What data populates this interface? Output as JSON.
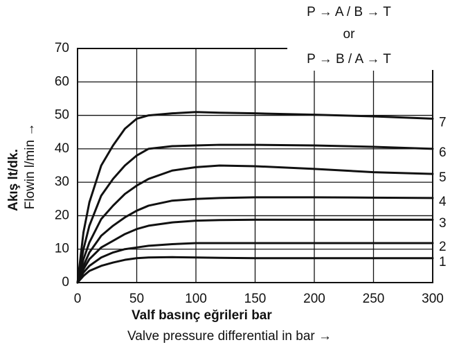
{
  "chart_data": {
    "type": "line",
    "annotations": [
      "P → A / B → T",
      "or",
      "P → B / A → T"
    ],
    "xlabel": "Valf basınç eğrileri bar",
    "xlabel2": "Valve pressure differential in bar →",
    "ylabel": "Akış lt/dk.",
    "ylabel2": "Flowin l/min →",
    "x": [
      0,
      5,
      10,
      20,
      30,
      40,
      50,
      60,
      80,
      100,
      120,
      150,
      200,
      250,
      300
    ],
    "series": [
      {
        "name": "1",
        "color": "#111111",
        "values": [
          0,
          2,
          3.5,
          5,
          6,
          6.8,
          7.3,
          7.5,
          7.6,
          7.5,
          7.4,
          7.3,
          7.3,
          7.3,
          7.3
        ]
      },
      {
        "name": "2",
        "color": "#111111",
        "values": [
          0,
          3,
          5,
          7.5,
          9,
          10,
          10.5,
          11,
          11.5,
          11.8,
          11.8,
          11.8,
          11.8,
          11.8,
          11.8
        ]
      },
      {
        "name": "3",
        "color": "#111111",
        "values": [
          0,
          4,
          7,
          10.5,
          12.5,
          14.5,
          16,
          17,
          18,
          18.5,
          18.7,
          18.8,
          18.8,
          18.8,
          18.8
        ]
      },
      {
        "name": "4",
        "color": "#111111",
        "values": [
          0,
          5,
          9,
          14,
          17,
          19.5,
          21.5,
          23,
          24.5,
          25,
          25.3,
          25.5,
          25.5,
          25.4,
          25.3
        ]
      },
      {
        "name": "5",
        "color": "#111111",
        "values": [
          0,
          7,
          12,
          19,
          23,
          26.5,
          29,
          31,
          33.5,
          34.5,
          35,
          34.8,
          34,
          33,
          32.5
        ]
      },
      {
        "name": "6",
        "color": "#111111",
        "values": [
          0,
          10,
          17,
          26,
          31,
          35,
          38,
          40,
          40.8,
          41,
          41.2,
          41.2,
          41,
          40.6,
          40
        ]
      },
      {
        "name": "7",
        "color": "#111111",
        "values": [
          0,
          15,
          24,
          35,
          41,
          46,
          49,
          50,
          50.6,
          51,
          50.8,
          50.6,
          50.2,
          49.7,
          49
        ]
      }
    ],
    "xlim": [
      0,
      300
    ],
    "xticks": [
      0,
      50,
      100,
      150,
      200,
      250,
      300
    ],
    "ylim": [
      0,
      70
    ],
    "yticks": [
      0,
      10,
      20,
      30,
      40,
      50,
      60,
      70
    ],
    "grid": true
  }
}
